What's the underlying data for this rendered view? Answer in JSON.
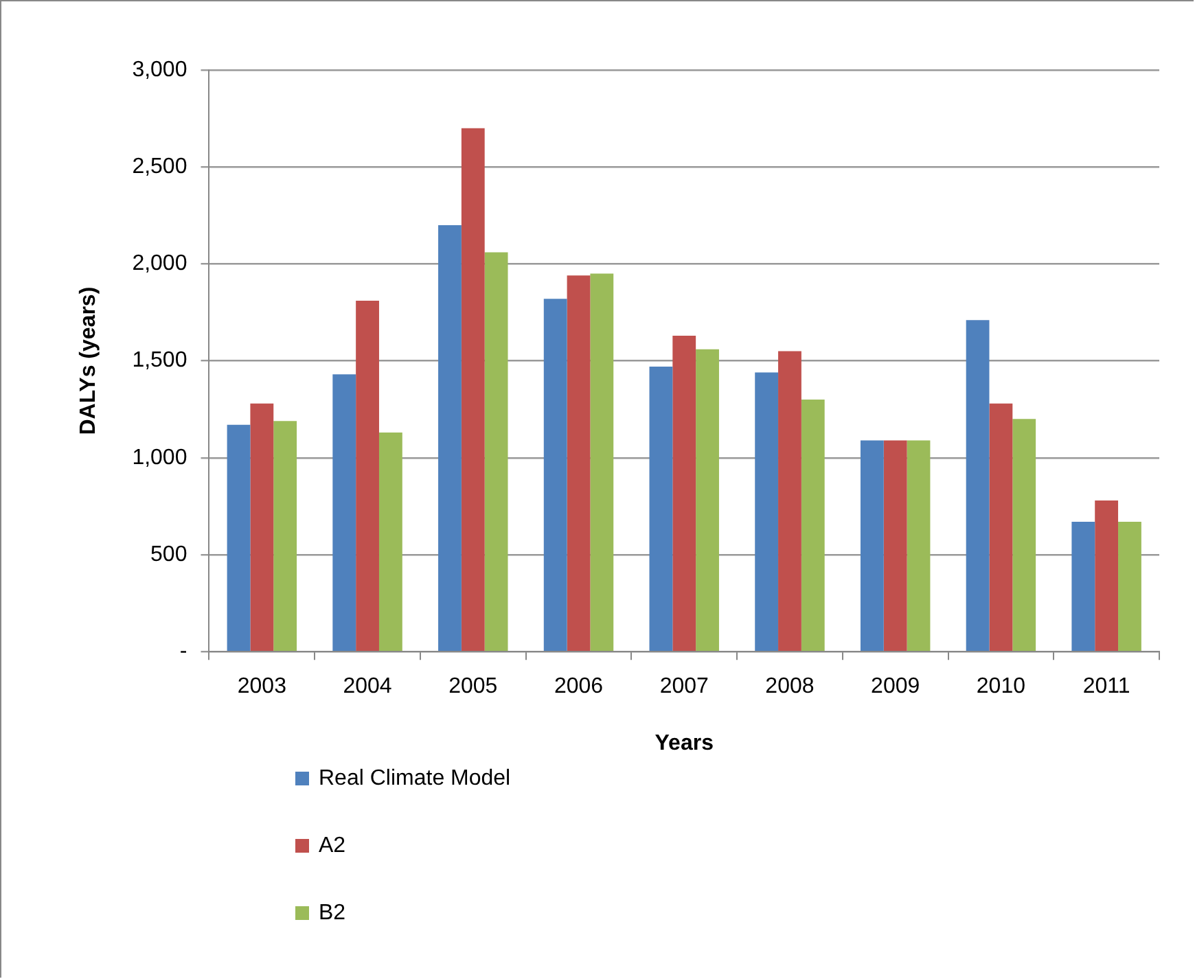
{
  "chart_data": {
    "type": "bar",
    "xlabel": "Years",
    "ylabel": "DALYs (years)",
    "categories": [
      "2003",
      "2004",
      "2005",
      "2006",
      "2007",
      "2008",
      "2009",
      "2010",
      "2011"
    ],
    "series": [
      {
        "name": "Real Climate Model",
        "color": "#4f81bd",
        "values": [
          1170,
          1430,
          2200,
          1820,
          1470,
          1440,
          1090,
          1710,
          670
        ]
      },
      {
        "name": "A2",
        "color": "#c0504d",
        "values": [
          1280,
          1810,
          2700,
          1940,
          1630,
          1550,
          1090,
          1280,
          780
        ]
      },
      {
        "name": "B2",
        "color": "#9bbb59",
        "values": [
          1190,
          1130,
          2060,
          1950,
          1560,
          1300,
          1090,
          1200,
          670
        ]
      }
    ],
    "ylim": [
      0,
      3000
    ],
    "yticks": [
      {
        "value": 0,
        "label": "-"
      },
      500,
      {
        "value": 1000,
        "label": "1,000"
      },
      {
        "value": 1500,
        "label": "1,500"
      },
      {
        "value": 2000,
        "label": "2,000"
      },
      {
        "value": 2500,
        "label": "2,500"
      },
      {
        "value": 3000,
        "label": "3,000"
      }
    ],
    "grid": "y",
    "legend": "bottom left"
  }
}
